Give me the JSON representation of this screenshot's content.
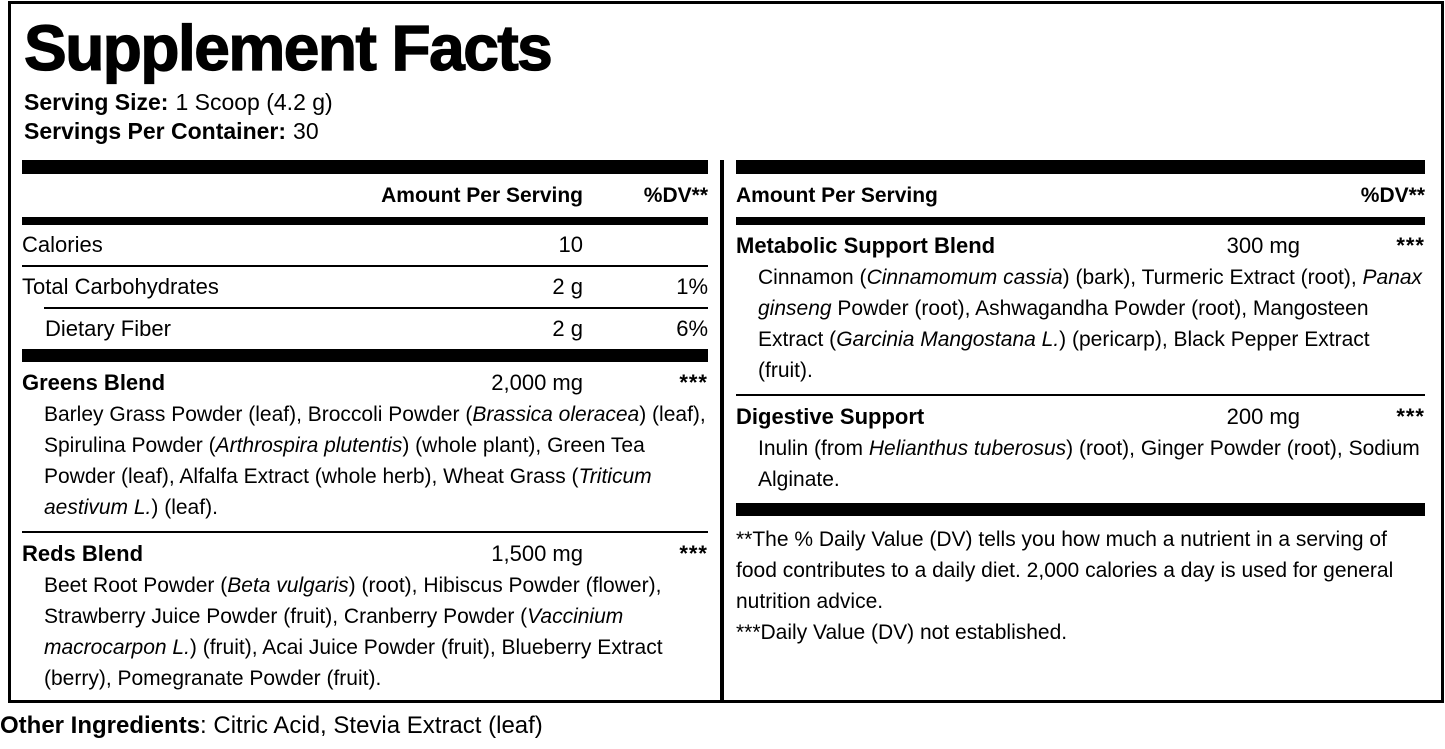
{
  "title": "Supplement Facts",
  "serving": {
    "size_label": "Serving Size:",
    "size_value": "1 Scoop (4.2 g)",
    "per_container_label": "Servings Per Container:",
    "per_container_value": "30"
  },
  "left": {
    "header": {
      "amount": "Amount Per Serving",
      "dv": "%DV**"
    },
    "rows": {
      "calories": {
        "name": "Calories",
        "amount": "10",
        "dv": ""
      },
      "carbs": {
        "name": "Total Carbohydrates",
        "amount": "2 g",
        "dv": "1%"
      },
      "fiber": {
        "name": "Dietary Fiber",
        "amount": "2 g",
        "dv": "6%"
      },
      "greens": {
        "name": "Greens Blend",
        "amount": "2,000 mg",
        "dv": "***",
        "desc": [
          {
            "t": "Barley Grass Powder (leaf), Broccoli Powder (",
            "i": false
          },
          {
            "t": "Brassica oleracea",
            "i": true
          },
          {
            "t": ") (leaf), Spirulina Powder (",
            "i": false
          },
          {
            "t": "Arthrospira plutentis",
            "i": true
          },
          {
            "t": ") (whole plant), Green Tea Powder (leaf), Alfalfa Extract (whole herb), Wheat Grass (",
            "i": false
          },
          {
            "t": "Triticum aestivum L.",
            "i": true
          },
          {
            "t": ") (leaf).",
            "i": false
          }
        ]
      },
      "reds": {
        "name": "Reds Blend",
        "amount": "1,500 mg",
        "dv": "***",
        "desc": [
          {
            "t": "Beet Root Powder (",
            "i": false
          },
          {
            "t": "Beta vulgaris",
            "i": true
          },
          {
            "t": ") (root), Hibiscus Powder (flower), Strawberry Juice Powder (fruit), Cranberry Powder (",
            "i": false
          },
          {
            "t": "Vaccinium macrocarpon L.",
            "i": true
          },
          {
            "t": ") (fruit), Acai Juice Powder (fruit), Blueberry Extract (berry), Pomegranate Powder (fruit).",
            "i": false
          }
        ]
      }
    }
  },
  "right": {
    "header": {
      "amount": "Amount Per Serving",
      "dv": "%DV**"
    },
    "rows": {
      "metabolic": {
        "name": "Metabolic Support Blend",
        "amount": "300 mg",
        "dv": "***",
        "desc": [
          {
            "t": "Cinnamon (",
            "i": false
          },
          {
            "t": "Cinnamomum cassia",
            "i": true
          },
          {
            "t": ") (bark), Turmeric Extract (root), ",
            "i": false
          },
          {
            "t": "Panax ginseng",
            "i": true
          },
          {
            "t": " Powder (root), Ashwagandha Powder (root), Mangosteen Extract (",
            "i": false
          },
          {
            "t": "Garcinia Mangostana L.",
            "i": true
          },
          {
            "t": ") (pericarp), Black Pepper Extract (fruit).",
            "i": false
          }
        ]
      },
      "digestive": {
        "name": "Digestive Support",
        "amount": "200 mg",
        "dv": "***",
        "desc": [
          {
            "t": "Inulin (from ",
            "i": false
          },
          {
            "t": "Helianthus tuberosus",
            "i": true
          },
          {
            "t": ") (root), Ginger Powder (root), Sodium Alginate.",
            "i": false
          }
        ]
      }
    },
    "footnotes": {
      "dv_note": "**The % Daily Value (DV) tells you how much a nutrient in a serving of food contributes to a daily diet. 2,000 calories a day is used for general nutrition advice.",
      "nd_note": "***Daily Value (DV) not established."
    }
  },
  "other_ingredients": {
    "label": "Other Ingredients",
    "value": ": Citric Acid, Stevia Extract (leaf)"
  },
  "colors": {
    "text": "#000000",
    "background": "#ffffff"
  }
}
